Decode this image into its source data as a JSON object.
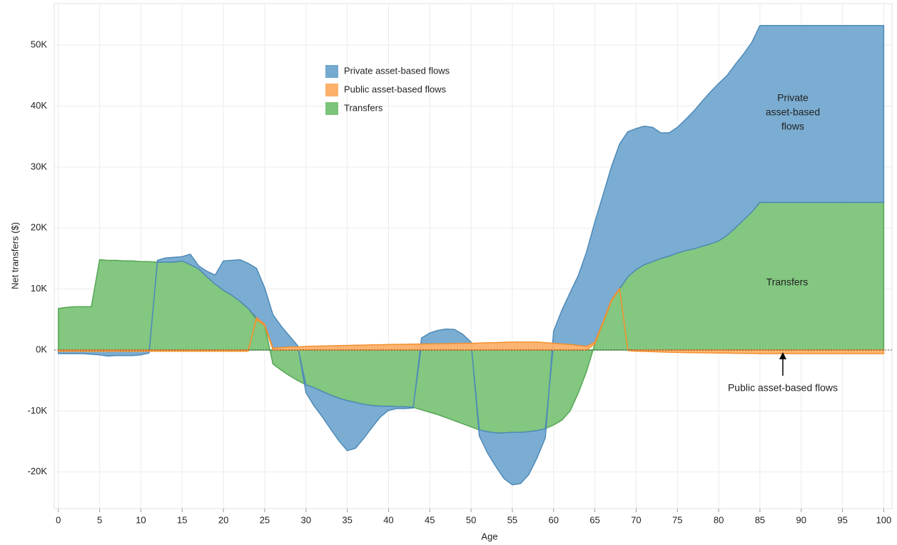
{
  "chart_data": {
    "type": "area",
    "x_label": "Age",
    "y_label": "Net transfers ($)",
    "x": [
      0,
      1,
      2,
      3,
      4,
      5,
      6,
      7,
      8,
      9,
      10,
      11,
      12,
      13,
      14,
      15,
      16,
      17,
      18,
      19,
      20,
      21,
      22,
      23,
      24,
      25,
      26,
      27,
      28,
      29,
      30,
      31,
      32,
      33,
      34,
      35,
      36,
      37,
      38,
      39,
      40,
      41,
      42,
      43,
      44,
      45,
      46,
      47,
      48,
      49,
      50,
      51,
      52,
      53,
      54,
      55,
      56,
      57,
      58,
      59,
      60,
      61,
      62,
      63,
      64,
      65,
      66,
      67,
      68,
      69,
      70,
      71,
      72,
      73,
      74,
      75,
      76,
      77,
      78,
      79,
      80,
      81,
      82,
      83,
      84,
      85,
      86,
      87,
      88,
      89,
      90,
      91,
      92,
      93,
      94,
      95,
      96,
      97,
      98,
      99,
      100
    ],
    "series": [
      {
        "name": "Transfers",
        "color": "#7cc47a",
        "stroke": "#55a655",
        "values": [
          6800,
          7000,
          7100,
          7100,
          7100,
          14800,
          14700,
          14700,
          14600,
          14600,
          14500,
          14500,
          14400,
          14400,
          14400,
          14600,
          14000,
          13300,
          12000,
          10800,
          9800,
          9000,
          8000,
          6800,
          5000,
          4000,
          -2300,
          -3300,
          -4200,
          -5000,
          -5700,
          -6200,
          -6800,
          -7400,
          -7900,
          -8300,
          -8600,
          -8900,
          -9100,
          -9200,
          -9200,
          -9300,
          -9300,
          -9400,
          -9800,
          -10200,
          -10600,
          -11100,
          -11600,
          -12100,
          -12600,
          -13100,
          -13400,
          -13600,
          -13600,
          -13500,
          -13500,
          -13400,
          -13200,
          -12900,
          -12300,
          -11500,
          -10000,
          -7000,
          -3500,
          1000,
          4500,
          8000,
          10000,
          12000,
          13200,
          14000,
          14500,
          15000,
          15400,
          15900,
          16300,
          16600,
          17000,
          17400,
          17900,
          18800,
          20000,
          21300,
          22600,
          24200,
          24200,
          24200,
          24200,
          24200,
          24200,
          24200,
          24200,
          24200,
          24200,
          24200,
          24200,
          24200,
          24200,
          24200,
          24200
        ]
      },
      {
        "name": "Public asset-based flows",
        "color": "#fdb06a",
        "stroke": "#f5902f",
        "values": [
          -200,
          -200,
          -200,
          -200,
          -200,
          -200,
          -200,
          -200,
          -200,
          -200,
          -200,
          -200,
          -200,
          -200,
          -200,
          -200,
          -200,
          -200,
          -200,
          -200,
          -200,
          -200,
          -200,
          -200,
          300,
          200,
          300,
          400,
          500,
          500,
          600,
          630,
          660,
          690,
          720,
          750,
          780,
          810,
          840,
          870,
          900,
          920,
          940,
          960,
          980,
          1000,
          1020,
          1040,
          1060,
          1080,
          1100,
          1140,
          1180,
          1220,
          1260,
          1300,
          1300,
          1300,
          1300,
          1200,
          1100,
          1000,
          900,
          750,
          600,
          300,
          200,
          200,
          100,
          -100,
          -200,
          -240,
          -280,
          -320,
          -360,
          -400,
          -420,
          -440,
          -460,
          -480,
          -500,
          -520,
          -540,
          -560,
          -580,
          -600,
          -600,
          -600,
          -600,
          -600,
          -600,
          -600,
          -600,
          -600,
          -600,
          -600,
          -600,
          -600,
          -600,
          -600,
          -600
        ]
      },
      {
        "name": "Private asset-based flows",
        "color": "#74a9d0",
        "stroke": "#4e8ab8",
        "values": [
          -400,
          -400,
          -400,
          -400,
          -500,
          -600,
          -800,
          -700,
          -700,
          -700,
          -600,
          -300,
          300,
          700,
          800,
          700,
          1700,
          500,
          900,
          1500,
          4800,
          5700,
          6800,
          7400,
          8100,
          6000,
          5500,
          3500,
          1800,
          200,
          -1300,
          -3000,
          -4200,
          -5600,
          -7000,
          -8200,
          -7500,
          -5600,
          -3600,
          -1800,
          -700,
          -300,
          -300,
          -100,
          1000,
          1800,
          2200,
          2400,
          2300,
          1500,
          200,
          -1000,
          -3500,
          -5500,
          -7500,
          -8600,
          -8400,
          -7000,
          -4500,
          -1500,
          2000,
          5500,
          8500,
          11500,
          15500,
          19700,
          20800,
          21800,
          23700,
          23800,
          23100,
          22700,
          22000,
          20600,
          20200,
          20600,
          21500,
          22600,
          23800,
          24900,
          25800,
          26200,
          26800,
          27200,
          27800,
          29000,
          29000,
          29000,
          29000,
          29000,
          29000,
          29000,
          29000,
          29000,
          29000,
          29000,
          29000,
          29000,
          29000,
          29000,
          29000
        ]
      }
    ],
    "legend_order": [
      2,
      1,
      0
    ],
    "annotations": [
      [
        "Private",
        "asset-based",
        "flows"
      ],
      [
        "Transfers"
      ],
      [
        "Public asset-based flows"
      ]
    ],
    "xlim": [
      -0.5,
      101
    ],
    "ylim": [
      -26000,
      56800
    ],
    "xticks": [
      0,
      5,
      10,
      15,
      20,
      25,
      30,
      35,
      40,
      45,
      50,
      55,
      60,
      65,
      70,
      75,
      80,
      85,
      90,
      95,
      100
    ],
    "yticks": [
      {
        "value": -20000,
        "label": "-20K"
      },
      {
        "value": -10000,
        "label": "-10K"
      },
      {
        "value": 0,
        "label": "0K"
      },
      {
        "value": 10000,
        "label": "10K"
      },
      {
        "value": 20000,
        "label": "20K"
      },
      {
        "value": 30000,
        "label": "30K"
      },
      {
        "value": 40000,
        "label": "40K"
      },
      {
        "value": 50000,
        "label": "50K"
      }
    ],
    "grid": true
  }
}
